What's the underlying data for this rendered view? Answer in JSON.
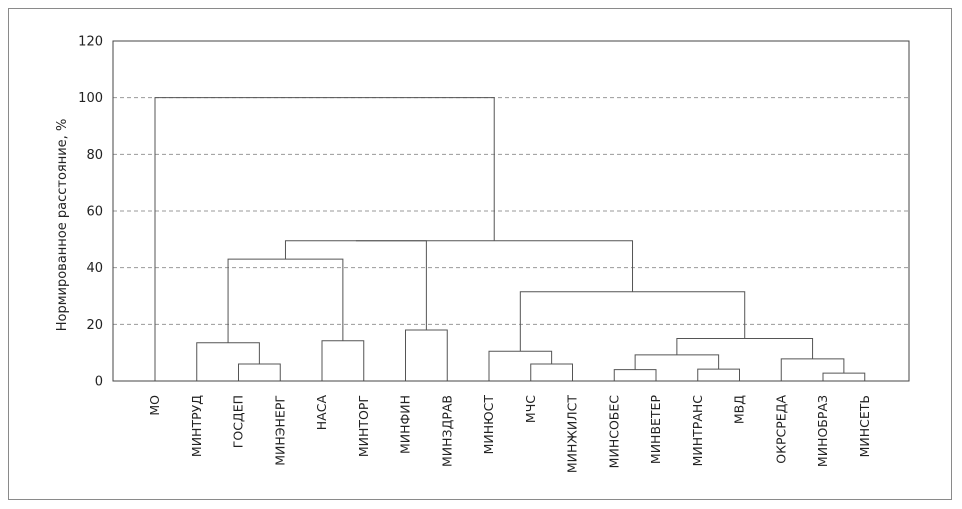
{
  "chart_data": {
    "type": "dendrogram",
    "ylabel": "Нормированное расстояние, %",
    "ylim": [
      0,
      120
    ],
    "yticks": [
      0,
      20,
      40,
      60,
      80,
      100,
      120
    ],
    "grid": "dashed horizontal",
    "leaves": [
      "МО",
      "МИНТРУД",
      "ГОСДЕП",
      "МИНЭНЕРГ",
      "НАСА",
      "МИНТОРГ",
      "МИНФИН",
      "МИНЗДРАВ",
      "МИНЮСТ",
      "МЧС",
      "МИНЖИЛСТ",
      "МИНСОБЕС",
      "МИНВЕТЕР",
      "МИНТРАНС",
      "МВД",
      "ОКРСРЕДА",
      "МИНОБРАЗ",
      "МИНСЕТЬ"
    ],
    "merges": [
      {
        "a": "leaf:2",
        "b": "leaf:3",
        "height": 6
      },
      {
        "a": "leaf:1",
        "b": "node:0",
        "height": 13.5
      },
      {
        "a": "leaf:4",
        "b": "leaf:5",
        "height": 14.2
      },
      {
        "a": "leaf:6",
        "b": "leaf:7",
        "height": 18
      },
      {
        "a": "leaf:9",
        "b": "leaf:10",
        "height": 6
      },
      {
        "a": "leaf:8",
        "b": "node:4",
        "height": 10.5
      },
      {
        "a": "leaf:11",
        "b": "leaf:12",
        "height": 4
      },
      {
        "a": "leaf:13",
        "b": "leaf:14",
        "height": 4.2
      },
      {
        "a": "node:6",
        "b": "node:7",
        "height": 9.2
      },
      {
        "a": "leaf:16",
        "b": "leaf:17",
        "height": 2.8
      },
      {
        "a": "leaf:15",
        "b": "node:9",
        "height": 7.8
      },
      {
        "a": "node:8",
        "b": "node:10",
        "height": 15
      },
      {
        "a": "node:5",
        "b": "node:11",
        "height": 31.5
      },
      {
        "a": "node:1",
        "b": "node:2",
        "height": 43
      },
      {
        "a": "node:13",
        "b": "node:3",
        "height": 49.5
      },
      {
        "a": "node:14",
        "b": "node:12",
        "height": 49.5
      },
      {
        "a": "leaf:0",
        "b": "node:15",
        "height": 100
      }
    ],
    "colors": {
      "line": "#555555",
      "grid": "#9a9a9a",
      "axis": "#444444"
    }
  }
}
